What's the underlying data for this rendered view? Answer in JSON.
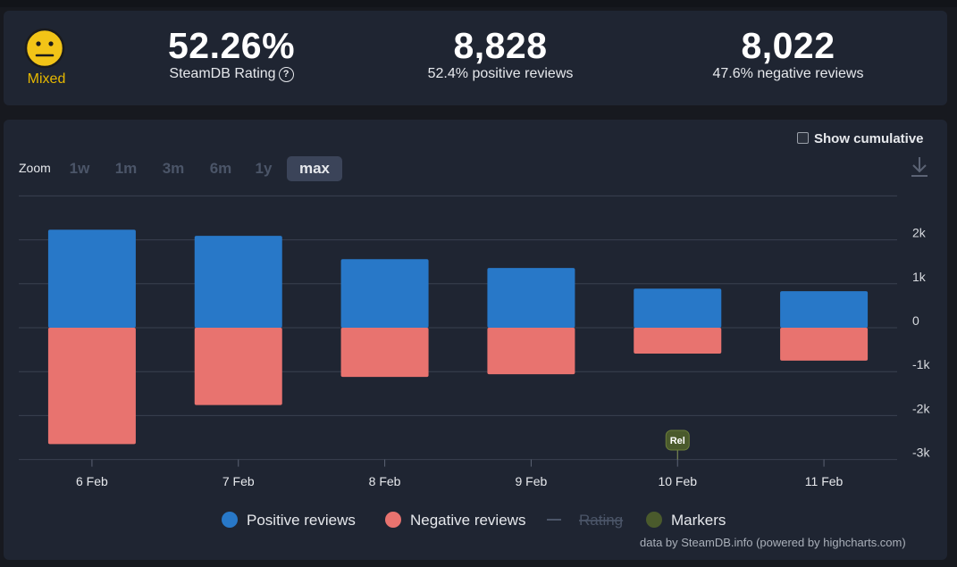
{
  "summary": {
    "rating_label": "Mixed",
    "rating_icon": "neutral-face-icon",
    "rating_percent": "52.26%",
    "rating_caption": "SteamDB Rating",
    "help_icon_glyph": "?",
    "positive_count": "8,828",
    "positive_caption": "52.4% positive reviews",
    "negative_count": "8,022",
    "negative_caption": "47.6% negative reviews"
  },
  "controls": {
    "zoom_label": "Zoom",
    "zoom_options": [
      "1w",
      "1m",
      "3m",
      "6m",
      "1y",
      "max"
    ],
    "zoom_selected": "max",
    "show_cumulative_label": "Show cumulative",
    "download_icon": "download-icon"
  },
  "chart_data": {
    "type": "bar",
    "categories": [
      "6 Feb",
      "7 Feb",
      "8 Feb",
      "9 Feb",
      "10 Feb",
      "11 Feb"
    ],
    "series": [
      {
        "name": "Positive reviews",
        "color": "#2878c8",
        "values": [
          2230,
          2090,
          1560,
          1360,
          890,
          830
        ]
      },
      {
        "name": "Negative reviews",
        "color": "#e8736f",
        "values": [
          -2650,
          -1760,
          -1120,
          -1060,
          -590,
          -750
        ]
      }
    ],
    "y_ticks": [
      "2k",
      "1k",
      "0",
      "-1k",
      "-2k",
      "-3k"
    ],
    "ylim": [
      -3000,
      3000
    ],
    "markers": [
      {
        "category": "10 Feb",
        "label": "Rel",
        "color": "#4a5a2c"
      }
    ],
    "legend": [
      {
        "label": "Positive reviews",
        "color": "#2878c8",
        "kind": "dot"
      },
      {
        "label": "Negative reviews",
        "color": "#e8736f",
        "kind": "dot"
      },
      {
        "label": "Rating",
        "color": "#4b5568",
        "kind": "line-hidden"
      },
      {
        "label": "Markers",
        "color": "#4a5a2c",
        "kind": "dot"
      }
    ],
    "legend_position": "bottom-center",
    "grid": true
  },
  "credit": "data by SteamDB.info (powered by highcharts.com)"
}
